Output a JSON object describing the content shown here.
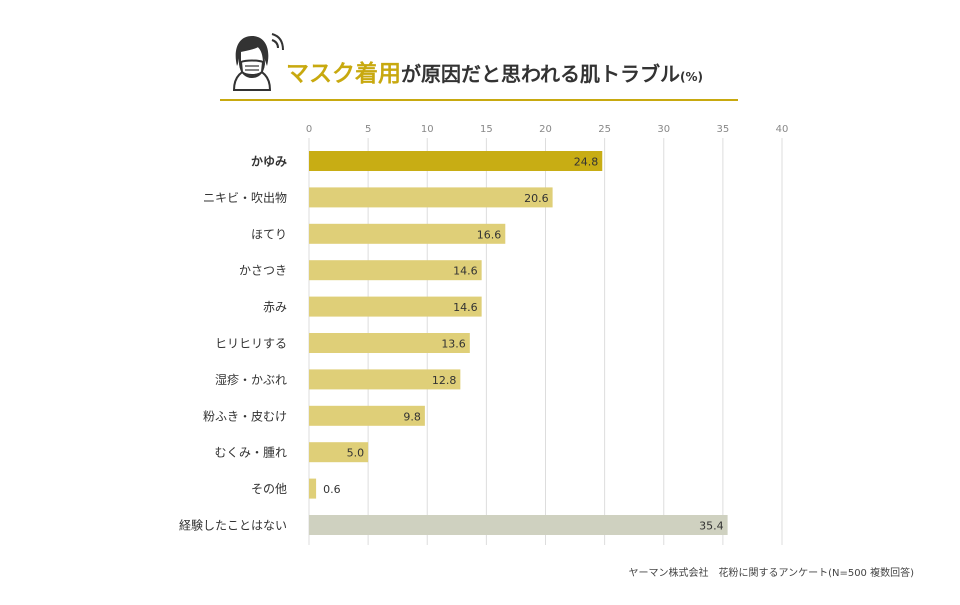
{
  "header": {
    "title_highlight": "マスク着用",
    "title_rest": "が原因だと思われる肌トラブル",
    "title_unit": "(%)"
  },
  "chart_data": {
    "type": "bar",
    "orientation": "horizontal",
    "categories": [
      "かゆみ",
      "ニキビ・吹出物",
      "ほてり",
      "かさつき",
      "赤み",
      "ヒリヒリする",
      "湿疹・かぶれ",
      "粉ふき・皮むけ",
      "むくみ・腫れ",
      "その他",
      "経験したことはない"
    ],
    "values": [
      24.8,
      20.6,
      16.6,
      14.6,
      14.6,
      13.6,
      12.8,
      9.8,
      5.0,
      0.6,
      35.4
    ],
    "value_labels": [
      "24.8",
      "20.6",
      "16.6",
      "14.6",
      "14.6",
      "13.6",
      "12.8",
      "9.8",
      "5.0",
      "0.6",
      "35.4"
    ],
    "xlim": [
      0,
      40
    ],
    "xticks": [
      0,
      5,
      10,
      15,
      20,
      25,
      30,
      35,
      40
    ],
    "grid": true,
    "highlight_index": 0,
    "colors": {
      "highlight": "#c8ad14",
      "default": "#dfcf78",
      "none_category": "#cfd1c0",
      "grid": "#dddddd",
      "label": "#333333"
    }
  },
  "footnote": "ヤーマン株式会社　花粉に関するアンケート(N=500 複数回答)"
}
